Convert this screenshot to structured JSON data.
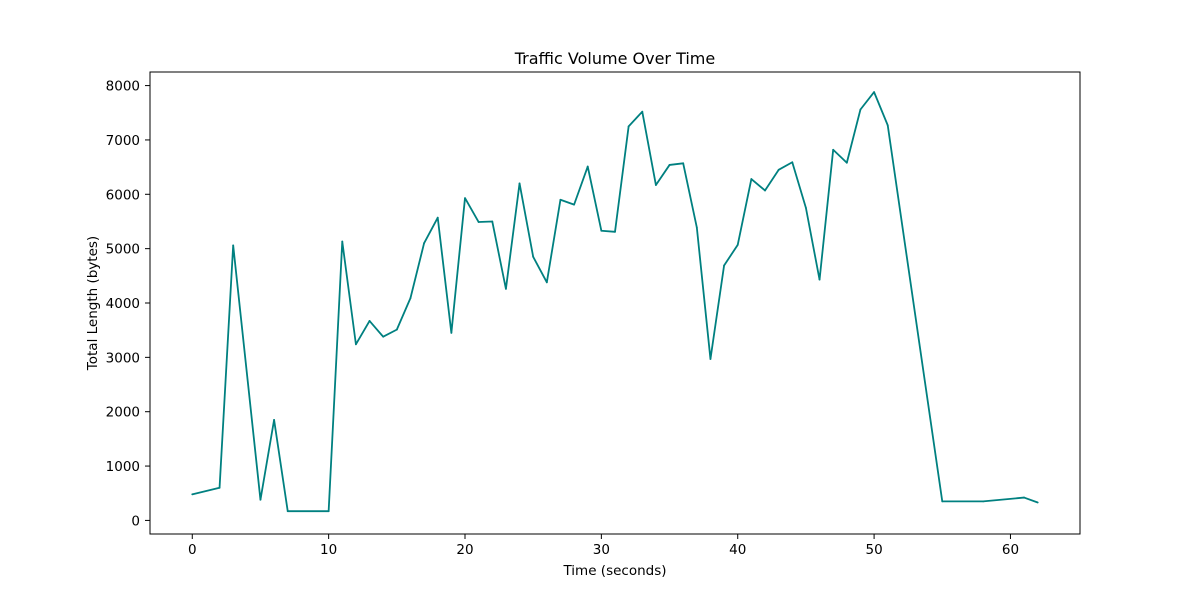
{
  "chart_data": {
    "type": "line",
    "title": "Traffic Volume Over Time",
    "xlabel": "Time (seconds)",
    "ylabel": "Total Length (bytes)",
    "xlim": [
      -3.1,
      65.1
    ],
    "ylim": [
      -250,
      8250
    ],
    "x_ticks": [
      0,
      10,
      20,
      30,
      40,
      50,
      60
    ],
    "y_ticks": [
      0,
      1000,
      2000,
      3000,
      4000,
      5000,
      6000,
      7000,
      8000
    ],
    "grid": false,
    "legend": "none",
    "series": [
      {
        "color": "#008080",
        "points": [
          [
            0,
            480
          ],
          [
            2,
            600
          ],
          [
            3,
            5060
          ],
          [
            5,
            380
          ],
          [
            6,
            1850
          ],
          [
            7,
            170
          ],
          [
            10,
            170
          ],
          [
            11,
            5130
          ],
          [
            12,
            3240
          ],
          [
            13,
            3670
          ],
          [
            14,
            3380
          ],
          [
            15,
            3510
          ],
          [
            16,
            4090
          ],
          [
            17,
            5100
          ],
          [
            18,
            5570
          ],
          [
            19,
            3450
          ],
          [
            20,
            5930
          ],
          [
            21,
            5490
          ],
          [
            22,
            5500
          ],
          [
            23,
            4260
          ],
          [
            24,
            6200
          ],
          [
            25,
            4850
          ],
          [
            26,
            4380
          ],
          [
            27,
            5900
          ],
          [
            28,
            5810
          ],
          [
            29,
            6510
          ],
          [
            30,
            5330
          ],
          [
            31,
            5310
          ],
          [
            32,
            7250
          ],
          [
            33,
            7520
          ],
          [
            34,
            6170
          ],
          [
            35,
            6540
          ],
          [
            36,
            6570
          ],
          [
            37,
            5390
          ],
          [
            38,
            2970
          ],
          [
            39,
            4690
          ],
          [
            40,
            5070
          ],
          [
            41,
            6280
          ],
          [
            42,
            6070
          ],
          [
            43,
            6450
          ],
          [
            44,
            6590
          ],
          [
            45,
            5750
          ],
          [
            46,
            4430
          ],
          [
            47,
            6820
          ],
          [
            48,
            6580
          ],
          [
            49,
            7560
          ],
          [
            50,
            7880
          ],
          [
            51,
            7270
          ],
          [
            55,
            350
          ],
          [
            58,
            350
          ],
          [
            61,
            420
          ],
          [
            62,
            330
          ]
        ]
      }
    ]
  }
}
